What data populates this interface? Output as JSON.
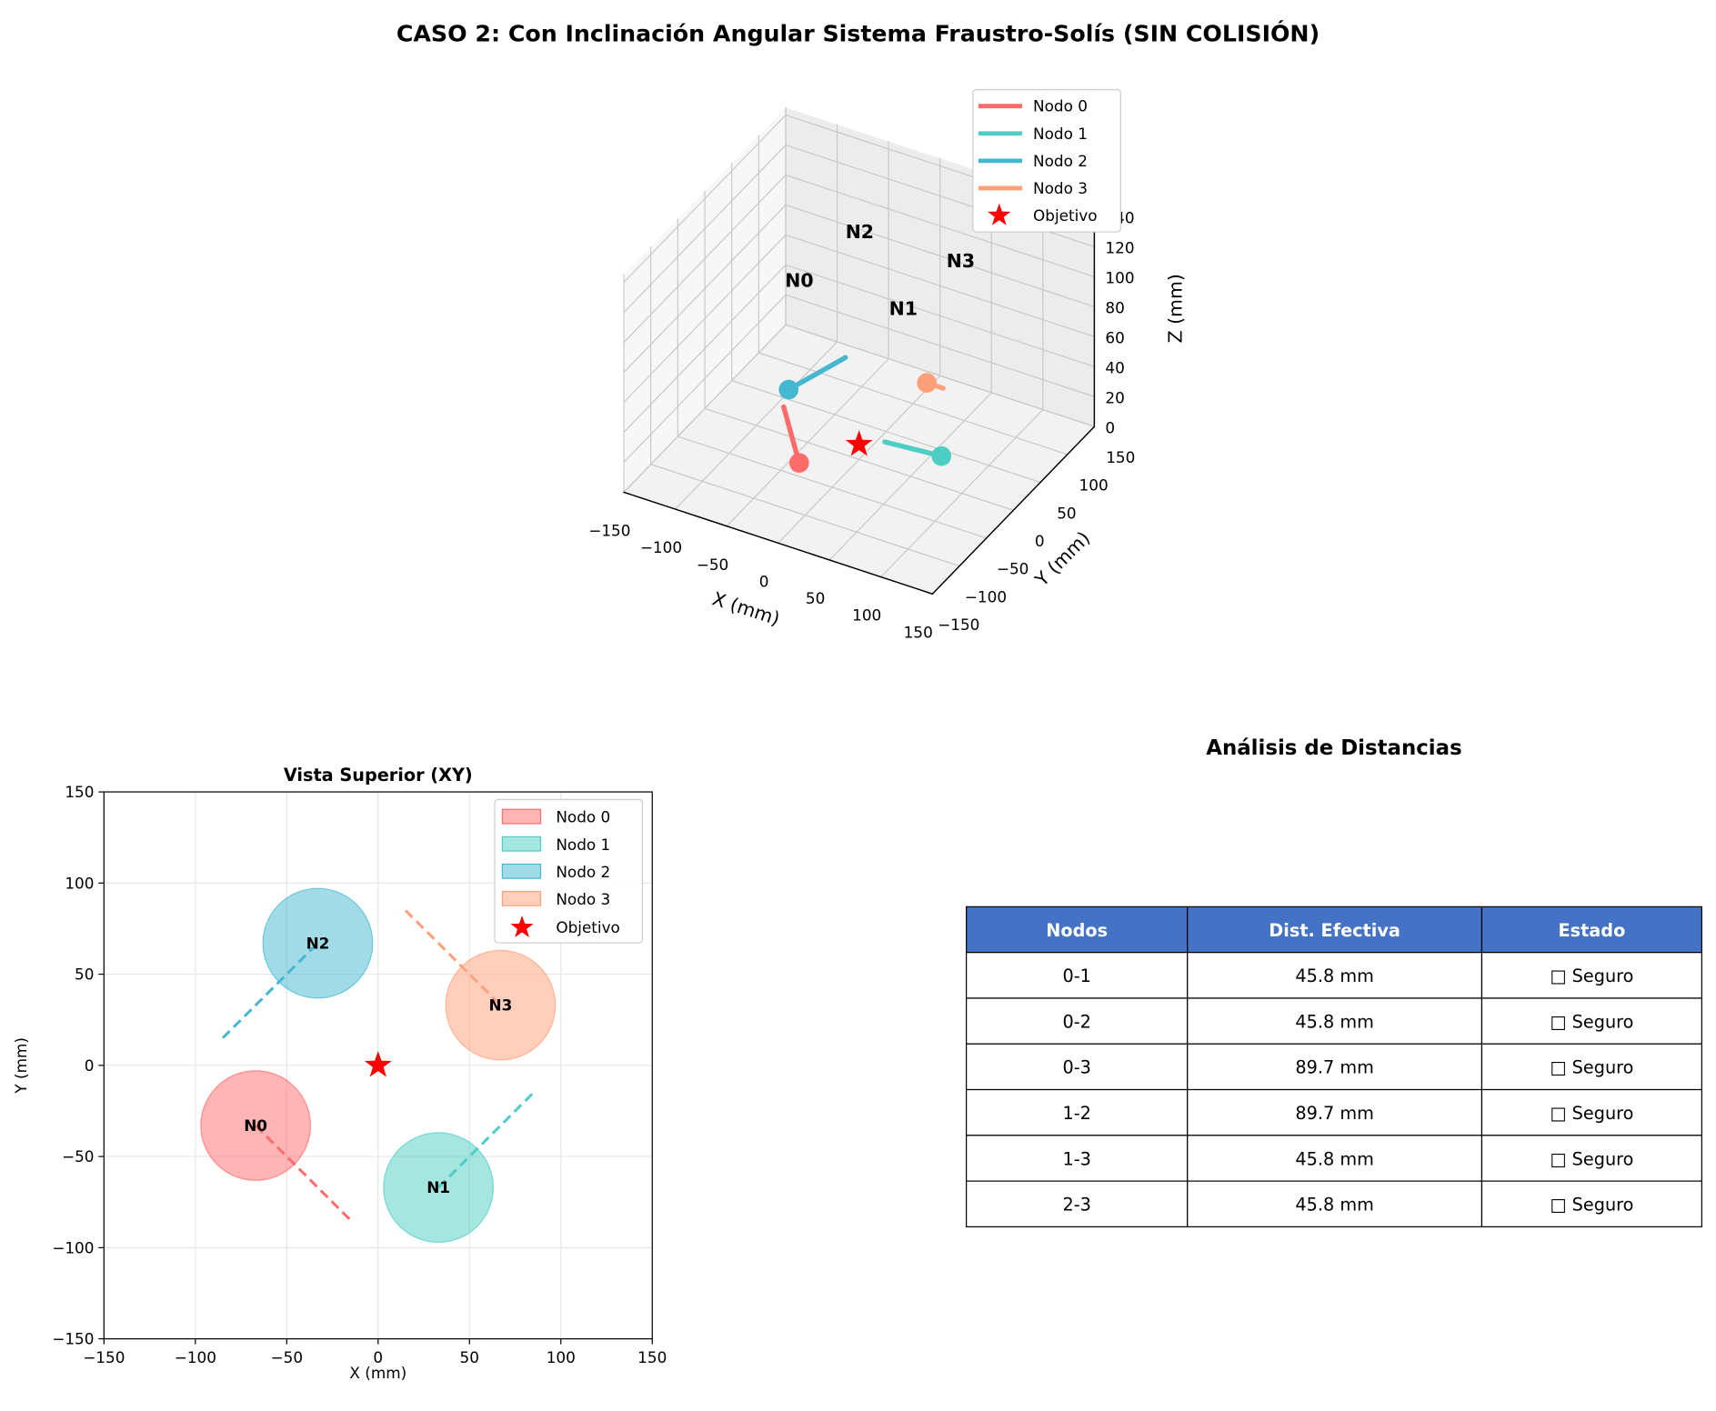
{
  "figure": {
    "title": "CASO 2: Con Inclinación Angular Sistema Fraustro-Solís (SIN COLISIÓN)"
  },
  "colors": {
    "nodo0": "#FF6B6B",
    "nodo1": "#4ECDC4",
    "nodo2": "#45B7D1",
    "nodo3": "#FFA07A",
    "objetivo": "#FF0000",
    "table_header": "#4472C4"
  },
  "chart_data": [
    {
      "type": "line3d",
      "title": "",
      "xlabel": "X (mm)",
      "ylabel": "Y (mm)",
      "zlabel": "Z (mm)",
      "xlim": [
        -150,
        150
      ],
      "ylim": [
        -150,
        150
      ],
      "zlim": [
        0,
        140
      ],
      "xticks": [
        "−150",
        "−100",
        "−50",
        "0",
        "50",
        "100",
        "150"
      ],
      "yticks": [
        "−150",
        "−100",
        "−50",
        "0",
        "50",
        "100",
        "150"
      ],
      "zticks": [
        "0",
        "20",
        "40",
        "60",
        "80",
        "100",
        "120",
        "140"
      ],
      "grid": true,
      "legend_position": "top-right",
      "series": [
        {
          "name": "Nodo 0",
          "base": [
            -31,
            -52,
            10
          ],
          "tip": [
            -45,
            -54,
            45
          ],
          "label": "N0",
          "label_pos": [
            -65,
            13,
            100
          ]
        },
        {
          "name": "Nodo 1",
          "base": [
            69,
            21,
            10
          ],
          "tip": [
            17,
            15,
            10
          ],
          "label": "N1",
          "label_pos": [
            32,
            21,
            100
          ]
        },
        {
          "name": "Nodo 2",
          "base": [
            -91,
            43,
            10
          ],
          "tip": [
            -72,
            112,
            10
          ],
          "label": "N2",
          "label_pos": [
            -55,
            106,
            100
          ]
        },
        {
          "name": "Nodo 3",
          "base": [
            6,
            114,
            10
          ],
          "tip": [
            22,
            114,
            10
          ],
          "label": "N3",
          "label_pos": [
            40,
            112,
            100
          ]
        }
      ],
      "target": {
        "name": "Objetivo",
        "point": [
          0,
          0,
          10
        ]
      }
    },
    {
      "type": "scatter",
      "title": "Vista Superior (XY)",
      "xlabel": "X (mm)",
      "ylabel": "Y (mm)",
      "xlim": [
        -150,
        150
      ],
      "ylim": [
        -150,
        150
      ],
      "xticks": [
        "−150",
        "−100",
        "−50",
        "0",
        "50",
        "100",
        "150"
      ],
      "yticks": [
        "−150",
        "−100",
        "−50",
        "0",
        "50",
        "100",
        "150"
      ],
      "grid": true,
      "legend_position": "top-right",
      "series": [
        {
          "name": "Nodo 0",
          "center": [
            -67,
            -33
          ],
          "radius": 30,
          "line": [
            [
              -67,
              -33
            ],
            [
              -15,
              -85
            ]
          ],
          "label": "N0"
        },
        {
          "name": "Nodo 1",
          "center": [
            33,
            -67
          ],
          "radius": 30,
          "line": [
            [
              33,
              -67
            ],
            [
              85,
              -15
            ]
          ],
          "label": "N1"
        },
        {
          "name": "Nodo 2",
          "center": [
            -33,
            67
          ],
          "radius": 30,
          "line": [
            [
              -85,
              15
            ],
            [
              -33,
              67
            ]
          ],
          "label": "N2"
        },
        {
          "name": "Nodo 3",
          "center": [
            67,
            33
          ],
          "radius": 30,
          "line": [
            [
              15,
              85
            ],
            [
              67,
              33
            ]
          ],
          "label": "N3"
        }
      ],
      "target": {
        "name": "Objetivo",
        "point": [
          0,
          0
        ]
      }
    },
    {
      "type": "table",
      "title": "Análisis de Distancias",
      "columns": [
        "Nodos",
        "Dist. Efectiva",
        "Estado"
      ],
      "rows": [
        [
          "0-1",
          "45.8 mm",
          "□ Seguro"
        ],
        [
          "0-2",
          "45.8 mm",
          "□ Seguro"
        ],
        [
          "0-3",
          "89.7 mm",
          "□ Seguro"
        ],
        [
          "1-2",
          "89.7 mm",
          "□ Seguro"
        ],
        [
          "1-3",
          "45.8 mm",
          "□ Seguro"
        ],
        [
          "2-3",
          "45.8 mm",
          "□ Seguro"
        ]
      ]
    }
  ]
}
